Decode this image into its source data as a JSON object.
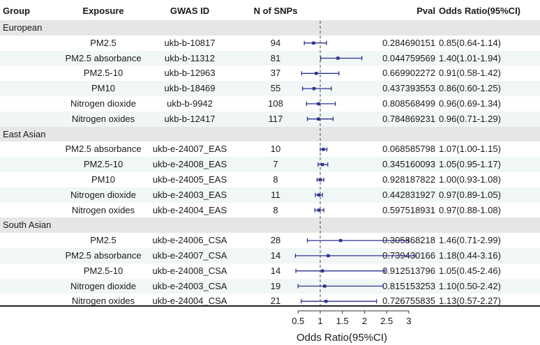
{
  "columns": {
    "group": "Group",
    "exposure": "Exposure",
    "gwas_id": "GWAS ID",
    "n_snps": "N of SNPs",
    "pval": "Pval",
    "odds_ratio": "Odds Ratio(95%CI)"
  },
  "colors": {
    "group_band": "#e6e6e6",
    "row_alt": "#f1f6f6",
    "marker": "#2b3190",
    "reference_line": "#444444"
  },
  "chart_data": {
    "type": "forest",
    "xlabel": "Odds Ratio(95%CI)",
    "x_ticks": [
      "0.5",
      "1",
      "1.5",
      "2",
      "2.5",
      "3"
    ],
    "xlim": [
      0.3,
      3.3
    ],
    "reference": 1,
    "groups": [
      {
        "name": "European",
        "rows": [
          {
            "exposure": "PM2.5",
            "gwas_id": "ukb-b-10817",
            "n_snps": "94",
            "pval": "0.284690151",
            "or_text": "0.85(0.64-1.14)",
            "or": 0.85,
            "lo": 0.64,
            "hi": 1.14
          },
          {
            "exposure": "PM2.5 absorbance",
            "gwas_id": "ukb-b-11312",
            "n_snps": "81",
            "pval": "0.044759569",
            "or_text": "1.40(1.01-1.94)",
            "or": 1.4,
            "lo": 1.01,
            "hi": 1.94
          },
          {
            "exposure": "PM2.5-10",
            "gwas_id": "ukb-b-12963",
            "n_snps": "37",
            "pval": "0.669902272",
            "or_text": "0.91(0.58-1.42)",
            "or": 0.91,
            "lo": 0.58,
            "hi": 1.42
          },
          {
            "exposure": "PM10",
            "gwas_id": "ukb-b-18469",
            "n_snps": "55",
            "pval": "0.437393553",
            "or_text": "0.86(0.60-1.25)",
            "or": 0.86,
            "lo": 0.6,
            "hi": 1.25
          },
          {
            "exposure": "Nitrogen dioxide",
            "gwas_id": "ukb-b-9942",
            "n_snps": "108",
            "pval": "0.808568499",
            "or_text": "0.96(0.69-1.34)",
            "or": 0.96,
            "lo": 0.69,
            "hi": 1.34
          },
          {
            "exposure": "Nitrogen oxides",
            "gwas_id": "ukb-b-12417",
            "n_snps": "117",
            "pval": "0.784869231",
            "or_text": "0.96(0.71-1.29)",
            "or": 0.96,
            "lo": 0.71,
            "hi": 1.29
          }
        ]
      },
      {
        "name": "East Asian",
        "rows": [
          {
            "exposure": "PM2.5 absorbance",
            "gwas_id": "ukb-e-24007_EAS",
            "n_snps": "10",
            "pval": "0.068585798",
            "or_text": "1.07(1.00-1.15)",
            "or": 1.07,
            "lo": 1.0,
            "hi": 1.15
          },
          {
            "exposure": "PM2.5-10",
            "gwas_id": "ukb-e-24008_EAS",
            "n_snps": "7",
            "pval": "0.345160093",
            "or_text": "1.05(0.95-1.17)",
            "or": 1.05,
            "lo": 0.95,
            "hi": 1.17
          },
          {
            "exposure": "PM10",
            "gwas_id": "ukb-e-24005_EAS",
            "n_snps": "8",
            "pval": "0.928187822",
            "or_text": "1.00(0.93-1.08)",
            "or": 1.0,
            "lo": 0.93,
            "hi": 1.08
          },
          {
            "exposure": "Nitrogen dioxide",
            "gwas_id": "ukb-e-24003_EAS",
            "n_snps": "11",
            "pval": "0.442831927",
            "or_text": "0.97(0.89-1.05)",
            "or": 0.97,
            "lo": 0.89,
            "hi": 1.05
          },
          {
            "exposure": "Nitrogen oxides",
            "gwas_id": "ukb-e-24004_EAS",
            "n_snps": "8",
            "pval": "0.597518931",
            "or_text": "0.97(0.88-1.08)",
            "or": 0.97,
            "lo": 0.88,
            "hi": 1.08
          }
        ]
      },
      {
        "name": "South Asian",
        "rows": [
          {
            "exposure": "PM2.5",
            "gwas_id": "ukb-e-24006_CSA",
            "n_snps": "28",
            "pval": "0.305868218",
            "or_text": "1.46(0.71-2.99)",
            "or": 1.46,
            "lo": 0.71,
            "hi": 2.99
          },
          {
            "exposure": "PM2.5 absorbance",
            "gwas_id": "ukb-e-24007_CSA",
            "n_snps": "14",
            "pval": "0.739430166",
            "or_text": "1.18(0.44-3.16)",
            "or": 1.18,
            "lo": 0.44,
            "hi": 3.16
          },
          {
            "exposure": "PM2.5-10",
            "gwas_id": "ukb-e-24008_CSA",
            "n_snps": "14",
            "pval": "0.912513796",
            "or_text": "1.05(0.45-2.46)",
            "or": 1.05,
            "lo": 0.45,
            "hi": 2.46
          },
          {
            "exposure": "Nitrogen dioxide",
            "gwas_id": "ukb-e-24003_CSA",
            "n_snps": "19",
            "pval": "0.815153253",
            "or_text": "1.10(0.50-2.42)",
            "or": 1.1,
            "lo": 0.5,
            "hi": 2.42
          },
          {
            "exposure": "Nitrogen oxides",
            "gwas_id": "ukb-e-24004_CSA",
            "n_snps": "21",
            "pval": "0.726755835",
            "or_text": "1.13(0.57-2.27)",
            "or": 1.13,
            "lo": 0.57,
            "hi": 2.27
          }
        ]
      }
    ]
  }
}
